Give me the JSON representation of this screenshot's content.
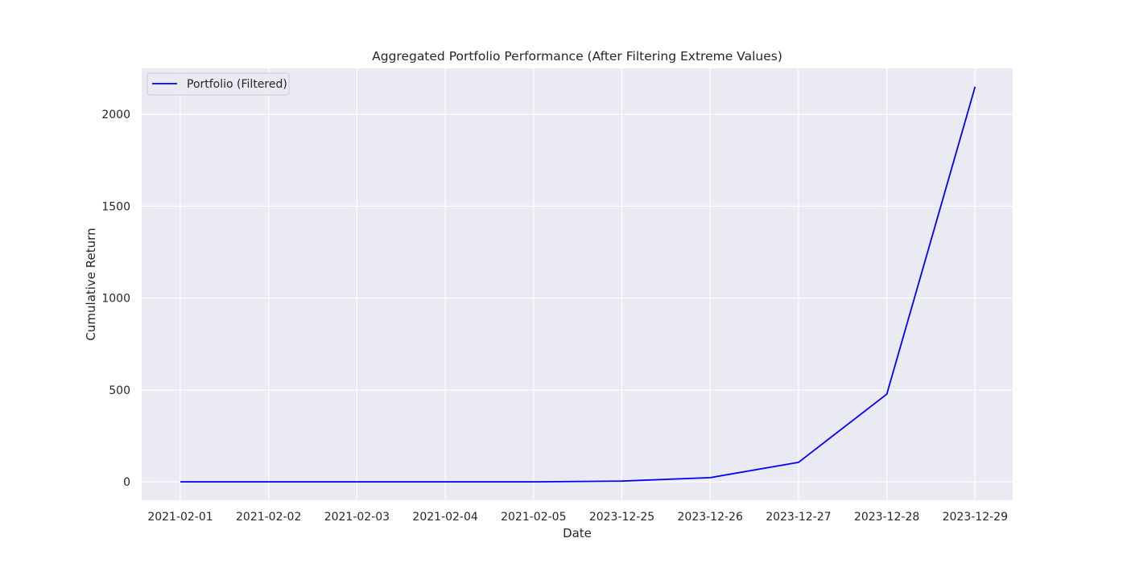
{
  "chart_data": {
    "type": "line",
    "title": "Aggregated Portfolio Performance (After Filtering Extreme Values)",
    "xlabel": "Date",
    "ylabel": "Cumulative Return",
    "categories": [
      "2021-02-01",
      "2021-02-02",
      "2021-02-03",
      "2021-02-04",
      "2021-02-05",
      "2023-12-25",
      "2023-12-26",
      "2023-12-27",
      "2023-12-28",
      "2023-12-29"
    ],
    "series": [
      {
        "name": "Portfolio (Filtered)",
        "color": "#0000ff",
        "values": [
          0,
          0,
          0,
          0,
          0,
          4,
          23,
          106,
          477,
          2150
        ]
      }
    ],
    "yticks": [
      0,
      500,
      1000,
      1500,
      2000
    ],
    "ylim": [
      -100,
      2250
    ],
    "grid": true,
    "legend_position": "top-left",
    "background_color": "#eaeaf2",
    "grid_color": "#ffffff"
  }
}
